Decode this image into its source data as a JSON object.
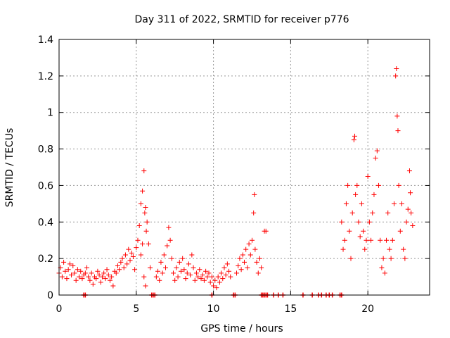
{
  "chart_data": {
    "type": "scatter",
    "title": "Day 311 of 2022, SRMTID for receiver p776",
    "xlabel": "GPS time / hours",
    "ylabel": "SRMTID / TECUs",
    "xlim": [
      0,
      24
    ],
    "ylim": [
      0,
      1.4
    ],
    "xticks": [
      0,
      5,
      10,
      15,
      20
    ],
    "yticks": [
      0,
      0.2,
      0.4,
      0.6,
      0.8,
      1,
      1.2,
      1.4
    ],
    "ytick_labels": [
      "0",
      "0.2",
      "0.4",
      "0.6",
      "0.8",
      "1",
      "1.2",
      "1.4"
    ],
    "grid": true,
    "marker": "plus",
    "series": [
      {
        "name": "SRMTID",
        "color": "#ff0000",
        "points": [
          [
            0.0,
            0.12
          ],
          [
            0.1,
            0.15
          ],
          [
            0.2,
            0.1
          ],
          [
            0.3,
            0.18
          ],
          [
            0.4,
            0.13
          ],
          [
            0.5,
            0.09
          ],
          [
            0.6,
            0.14
          ],
          [
            0.7,
            0.17
          ],
          [
            0.8,
            0.11
          ],
          [
            0.9,
            0.16
          ],
          [
            1.0,
            0.12
          ],
          [
            1.1,
            0.08
          ],
          [
            1.2,
            0.14
          ],
          [
            1.3,
            0.1
          ],
          [
            1.4,
            0.13
          ],
          [
            1.5,
            0.09
          ],
          [
            1.6,
            0.11
          ],
          [
            1.7,
            0.12
          ],
          [
            1.8,
            0.15
          ],
          [
            1.9,
            0.1
          ],
          [
            2.0,
            0.08
          ],
          [
            2.1,
            0.12
          ],
          [
            2.2,
            0.06
          ],
          [
            2.3,
            0.1
          ],
          [
            2.4,
            0.09
          ],
          [
            2.5,
            0.13
          ],
          [
            2.6,
            0.11
          ],
          [
            2.7,
            0.07
          ],
          [
            2.8,
            0.1
          ],
          [
            2.9,
            0.12
          ],
          [
            3.0,
            0.09
          ],
          [
            3.1,
            0.14
          ],
          [
            3.2,
            0.11
          ],
          [
            3.3,
            0.08
          ],
          [
            3.4,
            0.1
          ],
          [
            3.5,
            0.05
          ],
          [
            3.6,
            0.13
          ],
          [
            3.7,
            0.12
          ],
          [
            3.8,
            0.16
          ],
          [
            3.9,
            0.14
          ],
          [
            4.0,
            0.18
          ],
          [
            4.1,
            0.2
          ],
          [
            4.2,
            0.15
          ],
          [
            4.3,
            0.22
          ],
          [
            4.4,
            0.17
          ],
          [
            4.5,
            0.25
          ],
          [
            4.6,
            0.19
          ],
          [
            4.7,
            0.23
          ],
          [
            4.8,
            0.21
          ],
          [
            4.9,
            0.14
          ],
          [
            5.0,
            0.26
          ],
          [
            5.1,
            0.3
          ],
          [
            5.2,
            0.38
          ],
          [
            5.3,
            0.5
          ],
          [
            5.4,
            0.57
          ],
          [
            5.5,
            0.68
          ],
          [
            5.55,
            0.45
          ],
          [
            5.6,
            0.48
          ],
          [
            5.65,
            0.35
          ],
          [
            5.7,
            0.4
          ],
          [
            5.3,
            0.22
          ],
          [
            5.4,
            0.28
          ],
          [
            5.5,
            0.1
          ],
          [
            5.6,
            0.05
          ],
          [
            5.8,
            0.28
          ],
          [
            5.9,
            0.15
          ],
          [
            6.3,
            0.1
          ],
          [
            6.4,
            0.13
          ],
          [
            6.5,
            0.08
          ],
          [
            6.6,
            0.18
          ],
          [
            6.7,
            0.12
          ],
          [
            6.8,
            0.22
          ],
          [
            6.9,
            0.15
          ],
          [
            7.0,
            0.27
          ],
          [
            7.1,
            0.37
          ],
          [
            7.2,
            0.3
          ],
          [
            7.3,
            0.2
          ],
          [
            7.4,
            0.12
          ],
          [
            7.5,
            0.08
          ],
          [
            7.6,
            0.15
          ],
          [
            7.7,
            0.1
          ],
          [
            7.8,
            0.18
          ],
          [
            7.9,
            0.13
          ],
          [
            8.0,
            0.2
          ],
          [
            8.1,
            0.14
          ],
          [
            8.2,
            0.09
          ],
          [
            8.3,
            0.12
          ],
          [
            8.4,
            0.17
          ],
          [
            8.5,
            0.11
          ],
          [
            8.6,
            0.22
          ],
          [
            8.7,
            0.15
          ],
          [
            8.8,
            0.08
          ],
          [
            8.9,
            0.12
          ],
          [
            9.0,
            0.1
          ],
          [
            9.1,
            0.14
          ],
          [
            9.2,
            0.09
          ],
          [
            9.3,
            0.11
          ],
          [
            9.4,
            0.08
          ],
          [
            9.5,
            0.13
          ],
          [
            9.6,
            0.1
          ],
          [
            9.7,
            0.12
          ],
          [
            9.8,
            0.07
          ],
          [
            9.9,
            0.1
          ],
          [
            10.0,
            0.05
          ],
          [
            10.1,
            0.08
          ],
          [
            10.2,
            0.04
          ],
          [
            10.3,
            0.1
          ],
          [
            10.4,
            0.07
          ],
          [
            10.5,
            0.12
          ],
          [
            10.6,
            0.09
          ],
          [
            10.7,
            0.15
          ],
          [
            10.8,
            0.11
          ],
          [
            10.9,
            0.17
          ],
          [
            11.0,
            0.13
          ],
          [
            11.1,
            0.1
          ],
          [
            11.5,
            0.12
          ],
          [
            11.6,
            0.16
          ],
          [
            11.7,
            0.2
          ],
          [
            11.8,
            0.14
          ],
          [
            11.9,
            0.22
          ],
          [
            12.0,
            0.18
          ],
          [
            12.1,
            0.25
          ],
          [
            12.2,
            0.15
          ],
          [
            12.3,
            0.28
          ],
          [
            12.4,
            0.22
          ],
          [
            12.5,
            0.3
          ],
          [
            12.6,
            0.45
          ],
          [
            12.65,
            0.55
          ],
          [
            12.7,
            0.25
          ],
          [
            12.8,
            0.18
          ],
          [
            12.9,
            0.12
          ],
          [
            13.0,
            0.2
          ],
          [
            13.1,
            0.15
          ],
          [
            13.3,
            0.35
          ],
          [
            13.4,
            0.35
          ],
          [
            18.3,
            0.4
          ],
          [
            18.4,
            0.25
          ],
          [
            18.5,
            0.3
          ],
          [
            18.6,
            0.5
          ],
          [
            18.7,
            0.6
          ],
          [
            18.8,
            0.35
          ],
          [
            18.9,
            0.2
          ],
          [
            19.0,
            0.45
          ],
          [
            19.1,
            0.85
          ],
          [
            19.15,
            0.87
          ],
          [
            19.2,
            0.55
          ],
          [
            19.3,
            0.6
          ],
          [
            19.4,
            0.4
          ],
          [
            19.5,
            0.32
          ],
          [
            19.6,
            0.5
          ],
          [
            19.7,
            0.35
          ],
          [
            19.8,
            0.25
          ],
          [
            19.9,
            0.3
          ],
          [
            20.0,
            0.65
          ],
          [
            20.1,
            0.4
          ],
          [
            20.2,
            0.3
          ],
          [
            20.3,
            0.45
          ],
          [
            20.4,
            0.55
          ],
          [
            20.5,
            0.75
          ],
          [
            20.6,
            0.79
          ],
          [
            20.7,
            0.6
          ],
          [
            20.8,
            0.3
          ],
          [
            20.9,
            0.15
          ],
          [
            21.0,
            0.2
          ],
          [
            21.1,
            0.12
          ],
          [
            21.2,
            0.3
          ],
          [
            21.3,
            0.45
          ],
          [
            21.4,
            0.25
          ],
          [
            21.5,
            0.2
          ],
          [
            21.6,
            0.3
          ],
          [
            21.7,
            0.5
          ],
          [
            21.8,
            1.2
          ],
          [
            21.85,
            1.24
          ],
          [
            21.9,
            0.98
          ],
          [
            21.95,
            0.9
          ],
          [
            22.0,
            0.6
          ],
          [
            22.1,
            0.35
          ],
          [
            22.2,
            0.5
          ],
          [
            22.3,
            0.25
          ],
          [
            22.4,
            0.2
          ],
          [
            22.5,
            0.4
          ],
          [
            22.6,
            0.47
          ],
          [
            22.7,
            0.68
          ],
          [
            22.75,
            0.56
          ],
          [
            22.8,
            0.45
          ],
          [
            22.9,
            0.38
          ]
        ],
        "ground_points_x": [
          1.6,
          1.7,
          6.0,
          6.1,
          6.2,
          9.9,
          11.3,
          11.4,
          13.1,
          13.2,
          13.3,
          13.4,
          13.5,
          13.9,
          14.2,
          14.5,
          15.8,
          16.4,
          16.8,
          17.0,
          17.3,
          17.5,
          17.7,
          18.2,
          18.3
        ]
      }
    ]
  }
}
